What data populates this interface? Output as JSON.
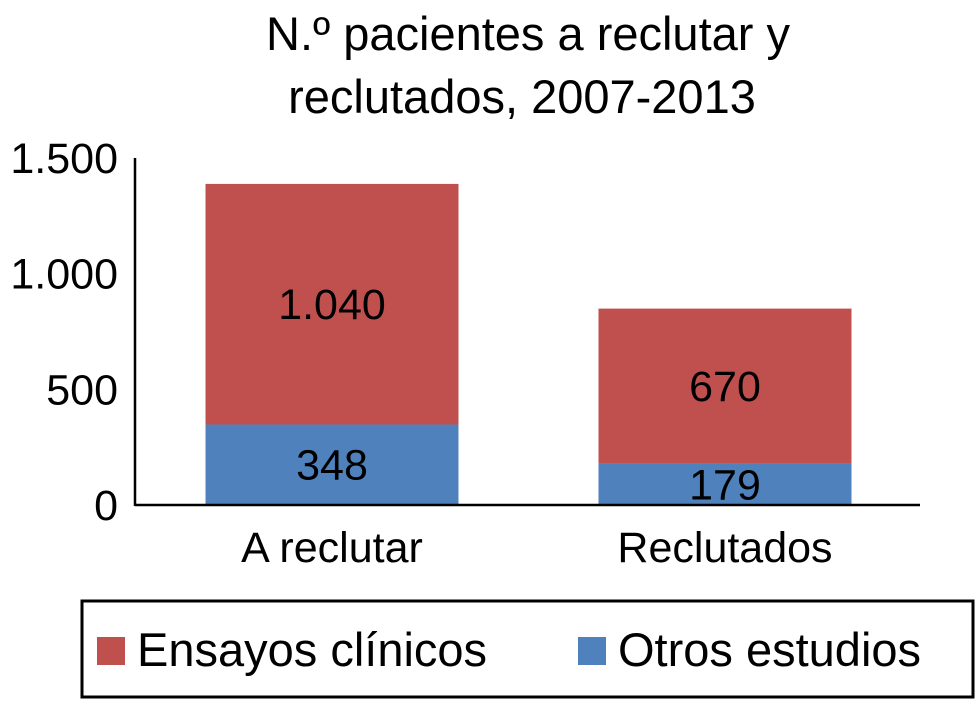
{
  "chart_data": {
    "type": "bar",
    "stacked": true,
    "title": "N.º pacientes a reclutar y reclutados, 2007-2013",
    "title_lines": [
      "N.º pacientes a reclutar y",
      "reclutados, 2007-2013"
    ],
    "xlabel": "",
    "ylabel": "",
    "categories": [
      "A reclutar",
      "Reclutados"
    ],
    "series": [
      {
        "name": "Otros estudios",
        "color": "#4f81bd",
        "values": [
          348,
          179
        ],
        "labels": [
          "348",
          "179"
        ]
      },
      {
        "name": "Ensayos clínicos",
        "color": "#c0504d",
        "values": [
          1040,
          670
        ],
        "labels": [
          "1.040",
          "670"
        ]
      }
    ],
    "ylim": [
      0,
      1500
    ],
    "yticks": [
      0,
      500,
      1000,
      1500
    ],
    "ytick_labels": [
      "0",
      "500",
      "1.000",
      "1.500"
    ],
    "grid": false,
    "legend_position": "bottom",
    "legend_order": [
      "Ensayos clínicos",
      "Otros estudios"
    ]
  }
}
